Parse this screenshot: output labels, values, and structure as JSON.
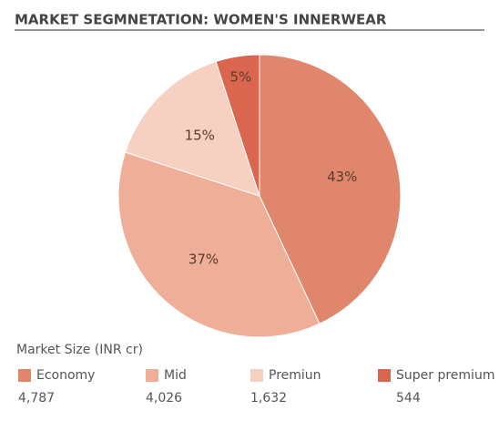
{
  "chart_data": {
    "type": "pie",
    "title": "MARKET SEGMNETATION: WOMEN'S INNERWEAR",
    "legend_title": "Market Size (INR cr)",
    "categories": [
      "Economy",
      "Mid",
      "Premiun",
      "Super premium"
    ],
    "values": [
      43,
      37,
      15,
      5
    ],
    "value_labels": [
      "43%",
      "37%",
      "15%",
      "5%"
    ],
    "sizes": [
      "4,787",
      "4,026",
      "1,632",
      "544"
    ],
    "colors": [
      "#e0866c",
      "#eeae98",
      "#f6d0c1",
      "#da6650"
    ]
  }
}
